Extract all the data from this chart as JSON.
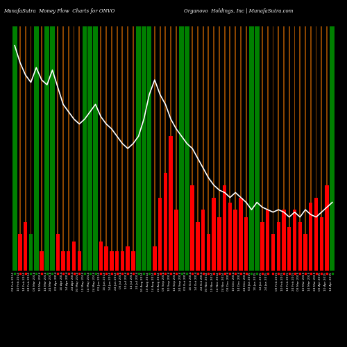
{
  "title_left": "MunafaSutra  Money Flow  Charts for ONVO",
  "title_right": "Organovo  Holdings, Inc | MunafaSutra.com",
  "background_color": "#000000",
  "line_color": "#ffffff",
  "n_bars": 60,
  "bar_heights": [
    100,
    15,
    20,
    15,
    100,
    8,
    100,
    100,
    15,
    8,
    8,
    12,
    8,
    100,
    100,
    100,
    12,
    10,
    8,
    8,
    8,
    10,
    8,
    100,
    100,
    100,
    10,
    30,
    40,
    55,
    25,
    100,
    100,
    35,
    20,
    25,
    15,
    30,
    22,
    35,
    28,
    25,
    30,
    22,
    100,
    100,
    20,
    25,
    15,
    20,
    25,
    18,
    25,
    20,
    15,
    28,
    30,
    22,
    35,
    100
  ],
  "bar_colors": [
    "green",
    "red",
    "red",
    "green",
    "green",
    "red",
    "green",
    "green",
    "red",
    "red",
    "red",
    "red",
    "red",
    "green",
    "green",
    "green",
    "red",
    "red",
    "red",
    "red",
    "red",
    "red",
    "red",
    "green",
    "green",
    "green",
    "red",
    "red",
    "red",
    "red",
    "red",
    "green",
    "green",
    "red",
    "red",
    "red",
    "red",
    "red",
    "red",
    "red",
    "red",
    "red",
    "red",
    "red",
    "green",
    "green",
    "red",
    "red",
    "red",
    "red",
    "red",
    "red",
    "red",
    "red",
    "red",
    "red",
    "red",
    "red",
    "red",
    "green"
  ],
  "bar_is_tall": [
    true,
    false,
    false,
    false,
    true,
    false,
    true,
    true,
    false,
    false,
    false,
    false,
    false,
    true,
    true,
    true,
    false,
    false,
    false,
    false,
    false,
    false,
    false,
    true,
    true,
    true,
    false,
    false,
    false,
    false,
    false,
    true,
    true,
    false,
    false,
    false,
    false,
    false,
    false,
    false,
    false,
    false,
    false,
    false,
    true,
    true,
    false,
    false,
    false,
    false,
    false,
    false,
    false,
    false,
    false,
    false,
    false,
    false,
    false,
    true
  ],
  "line_values": [
    0.92,
    0.85,
    0.8,
    0.77,
    0.83,
    0.78,
    0.76,
    0.82,
    0.75,
    0.68,
    0.65,
    0.62,
    0.6,
    0.62,
    0.65,
    0.68,
    0.63,
    0.6,
    0.58,
    0.55,
    0.52,
    0.5,
    0.52,
    0.55,
    0.62,
    0.72,
    0.78,
    0.72,
    0.68,
    0.62,
    0.58,
    0.55,
    0.52,
    0.5,
    0.46,
    0.42,
    0.38,
    0.35,
    0.33,
    0.32,
    0.3,
    0.32,
    0.3,
    0.28,
    0.25,
    0.28,
    0.26,
    0.25,
    0.24,
    0.25,
    0.24,
    0.22,
    0.24,
    0.22,
    0.25,
    0.23,
    0.22,
    0.24,
    0.26,
    0.28
  ],
  "xlabels": [
    "03 Feb 2014",
    "10 Feb 2014",
    "14 Feb 2014",
    "24 Feb 2014",
    "03 Mar 2014",
    "10 Mar 2014",
    "14 Mar 2014",
    "24 Mar 2014",
    "03 Apr 2014",
    "10 Apr 2014",
    "14 Apr 2014",
    "24 Apr 2014",
    "03 May 2014",
    "10 May 2014",
    "14 May 2014",
    "24 May 2014",
    "03 Jun 2014",
    "10 Jun 2014",
    "14 Jun 2014",
    "24 Jun 2014",
    "03 Jul 2014",
    "10 Jul 2014",
    "14 Jul 2014",
    "24 Jul 2014",
    "03 Aug 2014",
    "10 Aug 2014",
    "14 Aug 2014",
    "24 Aug 2014",
    "03 Sep 2014",
    "10 Sep 2014",
    "14 Sep 2014",
    "24 Sep 2014",
    "03 Oct 2014",
    "10 Oct 2014",
    "14 Oct 2014",
    "24 Oct 2014",
    "03 Nov 2014",
    "10 Nov 2014",
    "14 Nov 2014",
    "24 Nov 2014",
    "03 Dec 2014",
    "10 Dec 2014",
    "14 Dec 2014",
    "24 Dec 2014",
    "03 Jan 2015",
    "10 Jan 2015",
    "14 Jan 2015",
    "24 Jan 2015",
    "",
    "03 Feb 2015",
    "10 Feb 2015",
    "14 Feb 2015",
    "24 Feb 2015",
    "03 Mar 2015",
    "10 Mar 2015",
    "14 Mar 2015",
    "24 Mar 2015",
    "03 Apr 2015",
    "10 Apr 2015",
    "14 Apr 2015"
  ]
}
